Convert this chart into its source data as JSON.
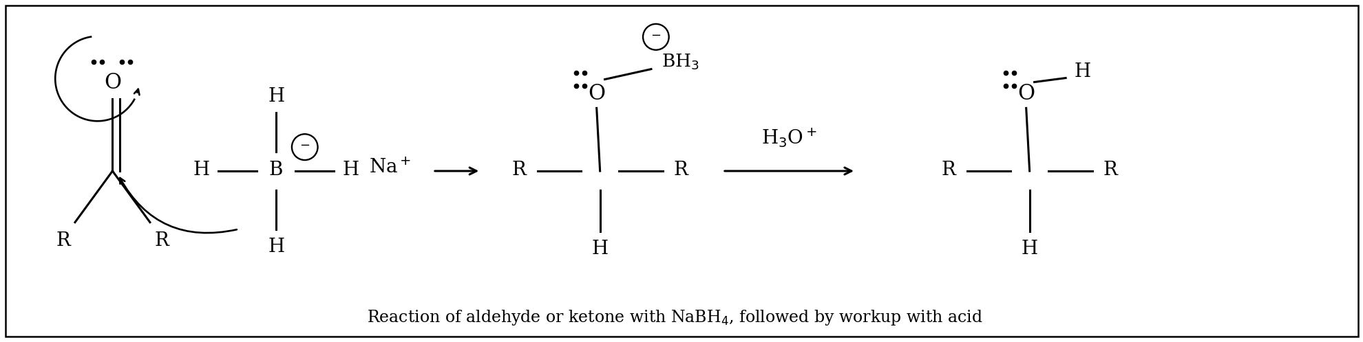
{
  "fig_width": 19.81,
  "fig_height": 4.98,
  "dpi": 100,
  "bg_color": "#ffffff",
  "text_color": "#000000",
  "lw": 2.2,
  "fs": 20,
  "fs_caption": 17,
  "xlim": [
    0,
    20
  ],
  "ylim": [
    0,
    5
  ],
  "caption": "Reaction of aldehyde or ketone with NaBH",
  "caption2": ", followed by workup with acid"
}
